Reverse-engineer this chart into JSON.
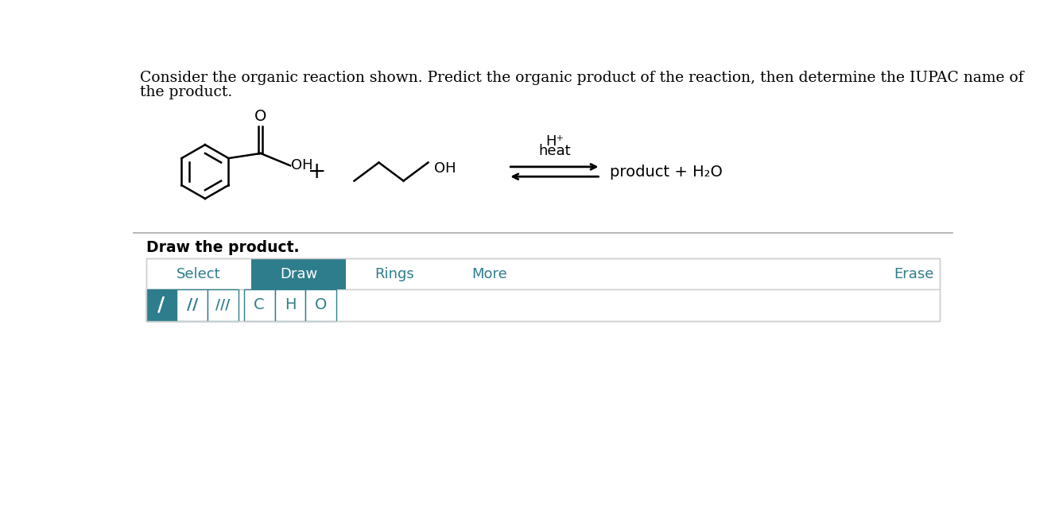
{
  "title_line1": "Consider the organic reaction shown. Predict the organic product of the reaction, then determine the IUPAC name of",
  "title_line2": "the product.",
  "title_fontsize": 13.5,
  "title_color": "#000000",
  "background_color": "#ffffff",
  "h_plus_text": "H⁺",
  "heat_text": "heat",
  "arrow_text": "product + H₂O",
  "draw_label": "Draw the product.",
  "toolbar_items": [
    "Select",
    "Draw",
    "Rings",
    "More",
    "Erase"
  ],
  "toolbar_active": "Draw",
  "toolbar_active_color": "#2e7d8c",
  "toolbar_text_color": "#2e7d8c",
  "toolbar_active_text_color": "#ffffff",
  "bond_icons": [
    "/",
    "//",
    "///"
  ],
  "atom_icons": [
    "C",
    "H",
    "O"
  ],
  "separator_color": "#cccccc",
  "separator_color2": "#aaaaaa"
}
